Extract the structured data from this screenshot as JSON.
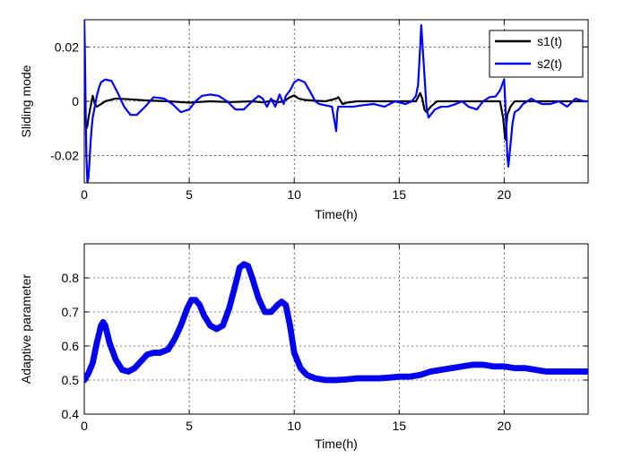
{
  "chart_data": [
    {
      "type": "line",
      "xlabel": "Time(h)",
      "ylabel": "Sliding mode",
      "xlim": [
        0,
        24
      ],
      "ylim": [
        -0.03,
        0.03
      ],
      "xticks": [
        0,
        5,
        10,
        15,
        20
      ],
      "yticks": [
        -0.02,
        0,
        0.02
      ],
      "xtick_labels": [
        "0",
        "5",
        "10",
        "15",
        "20"
      ],
      "ytick_labels": [
        "-0.02",
        "0",
        "0.02"
      ],
      "grid": true,
      "legend_position": "top-right",
      "series": [
        {
          "name": "s1(t)",
          "color": "#000000",
          "x": [
            0,
            0.05,
            0.1,
            0.15,
            0.2,
            0.3,
            0.4,
            0.5,
            0.6,
            0.8,
            1.0,
            1.5,
            2.0,
            3.0,
            4.0,
            5.0,
            6.0,
            7.0,
            8.0,
            8.5,
            9.0,
            9.2,
            9.5,
            9.8,
            10.0,
            10.2,
            10.5,
            11.0,
            11.5,
            12.0,
            12.1,
            12.3,
            12.5,
            13.0,
            14.0,
            15.0,
            15.8,
            16.0,
            16.1,
            16.2,
            16.3,
            16.5,
            16.8,
            17.0,
            18.0,
            19.0,
            19.8,
            19.95,
            20.05,
            20.15,
            20.3,
            20.5,
            21.0,
            22.0,
            23.0,
            24.0
          ],
          "y": [
            0.002,
            -0.006,
            -0.01,
            -0.009,
            -0.006,
            -0.002,
            0.002,
            -0.001,
            -0.002,
            -0.001,
            0.0,
            0.001,
            0.0008,
            0.0003,
            0.0,
            -0.0005,
            0.0,
            -0.0003,
            0.0,
            -0.0004,
            0.0003,
            -0.0004,
            0.0,
            0.0015,
            0.0022,
            0.001,
            0.0005,
            0.0002,
            0.0,
            0.001,
            0.0015,
            -0.001,
            -0.0005,
            0.0,
            0.0,
            0.0,
            0.0,
            0.003,
            0.001,
            -0.003,
            -0.004,
            -0.002,
            0.0,
            0.0,
            0.0,
            0.0,
            0.0,
            -0.006,
            -0.014,
            -0.005,
            -0.002,
            0.0,
            0.0,
            0.0,
            0.0,
            0.0
          ]
        },
        {
          "name": "s2(t)",
          "color": "#0000FF",
          "x": [
            0,
            0.03,
            0.06,
            0.1,
            0.15,
            0.2,
            0.25,
            0.3,
            0.35,
            0.4,
            0.5,
            0.6,
            0.7,
            0.8,
            1.0,
            1.3,
            1.6,
            1.9,
            2.2,
            2.5,
            2.9,
            3.3,
            3.8,
            4.2,
            4.6,
            5.0,
            5.3,
            5.6,
            6.0,
            6.4,
            6.8,
            7.2,
            7.6,
            8.0,
            8.3,
            8.5,
            8.7,
            8.9,
            9.1,
            9.3,
            9.5,
            9.6,
            9.8,
            10.0,
            10.2,
            10.5,
            10.8,
            11.0,
            11.2,
            11.5,
            11.8,
            12.0,
            12.05,
            12.1,
            12.2,
            12.4,
            12.8,
            13.2,
            13.8,
            14.3,
            14.8,
            15.3,
            15.6,
            15.8,
            15.9,
            16.0,
            16.05,
            16.1,
            16.2,
            16.3,
            16.4,
            16.5,
            16.7,
            17.0,
            17.3,
            17.7,
            18.0,
            18.3,
            18.7,
            19.0,
            19.3,
            19.6,
            19.8,
            19.9,
            20.0,
            20.05,
            20.1,
            20.15,
            20.2,
            20.3,
            20.4,
            20.5,
            20.7,
            20.9,
            21.1,
            21.3,
            21.5,
            21.8,
            22.2,
            22.6,
            23.0,
            23.4,
            23.8,
            24.0
          ],
          "y": [
            0.03,
            0.018,
            0.0,
            -0.02,
            -0.03,
            -0.028,
            -0.022,
            -0.015,
            -0.01,
            -0.006,
            -0.002,
            0.002,
            0.005,
            0.007,
            0.008,
            0.0075,
            0.003,
            -0.002,
            -0.005,
            -0.005,
            -0.002,
            0.0015,
            0.001,
            -0.001,
            -0.004,
            -0.003,
            0.0,
            0.002,
            0.0025,
            0.002,
            0.0,
            -0.003,
            -0.003,
            0.0,
            0.002,
            0.001,
            -0.002,
            0.001,
            -0.002,
            0.0025,
            -0.001,
            0.002,
            0.004,
            0.007,
            0.008,
            0.007,
            0.003,
            0.0,
            -0.001,
            -0.0015,
            -0.002,
            -0.011,
            -0.004,
            -0.002,
            -0.002,
            -0.002,
            -0.002,
            -0.0015,
            -0.001,
            -0.002,
            0.0,
            -0.001,
            0.0,
            0.002,
            0.006,
            0.02,
            0.028,
            0.022,
            0.01,
            -0.002,
            -0.006,
            -0.005,
            -0.003,
            -0.002,
            -0.002,
            -0.001,
            0.0,
            -0.002,
            -0.003,
            0.0,
            0.0015,
            0.0018,
            0.004,
            0.006,
            0.008,
            0.0,
            -0.01,
            -0.02,
            -0.024,
            -0.016,
            -0.008,
            -0.004,
            -0.003,
            -0.001,
            0.0,
            0.001,
            0.0,
            -0.001,
            -0.001,
            0.0,
            -0.002,
            0.001,
            0.0,
            0.0
          ]
        }
      ]
    },
    {
      "type": "scatter",
      "xlabel": "Time(h)",
      "ylabel": "Adaptive parameter",
      "xlim": [
        0,
        24
      ],
      "ylim": [
        0.4,
        0.9
      ],
      "xticks": [
        0,
        5,
        10,
        15,
        20
      ],
      "yticks": [
        0.4,
        0.5,
        0.6,
        0.7,
        0.8
      ],
      "xtick_labels": [
        "0",
        "5",
        "10",
        "15",
        "20"
      ],
      "ytick_labels": [
        "0.4",
        "0.5",
        "0.6",
        "0.7",
        "0.8"
      ],
      "grid": true,
      "series": [
        {
          "name": "adaptive parameter",
          "color": "#0000FF",
          "marker": "filled-circle",
          "x": [
            0,
            0.2,
            0.4,
            0.6,
            0.8,
            0.9,
            1.0,
            1.2,
            1.5,
            1.8,
            2.1,
            2.4,
            2.7,
            3.0,
            3.3,
            3.6,
            4.0,
            4.3,
            4.6,
            4.9,
            5.1,
            5.3,
            5.5,
            5.7,
            6.0,
            6.3,
            6.6,
            6.9,
            7.2,
            7.4,
            7.6,
            7.8,
            8.0,
            8.3,
            8.6,
            8.9,
            9.2,
            9.4,
            9.6,
            9.8,
            10.0,
            10.3,
            10.6,
            11.0,
            11.5,
            12.0,
            12.5,
            13.0,
            13.5,
            14.0,
            14.5,
            15.0,
            15.5,
            16.0,
            16.5,
            17.0,
            17.5,
            18.0,
            18.5,
            19.0,
            19.5,
            20.0,
            20.5,
            21.0,
            21.5,
            22.0,
            22.5,
            23.0,
            23.5,
            24.0
          ],
          "y": [
            0.5,
            0.52,
            0.55,
            0.61,
            0.66,
            0.67,
            0.66,
            0.61,
            0.56,
            0.53,
            0.525,
            0.535,
            0.555,
            0.575,
            0.58,
            0.58,
            0.59,
            0.62,
            0.66,
            0.71,
            0.735,
            0.735,
            0.72,
            0.69,
            0.66,
            0.65,
            0.66,
            0.71,
            0.78,
            0.83,
            0.84,
            0.835,
            0.8,
            0.74,
            0.7,
            0.7,
            0.72,
            0.73,
            0.72,
            0.66,
            0.58,
            0.535,
            0.515,
            0.505,
            0.5,
            0.5,
            0.502,
            0.505,
            0.505,
            0.505,
            0.507,
            0.51,
            0.51,
            0.515,
            0.525,
            0.53,
            0.535,
            0.54,
            0.545,
            0.545,
            0.54,
            0.54,
            0.535,
            0.535,
            0.53,
            0.525,
            0.525,
            0.525,
            0.525,
            0.525
          ]
        }
      ]
    }
  ]
}
